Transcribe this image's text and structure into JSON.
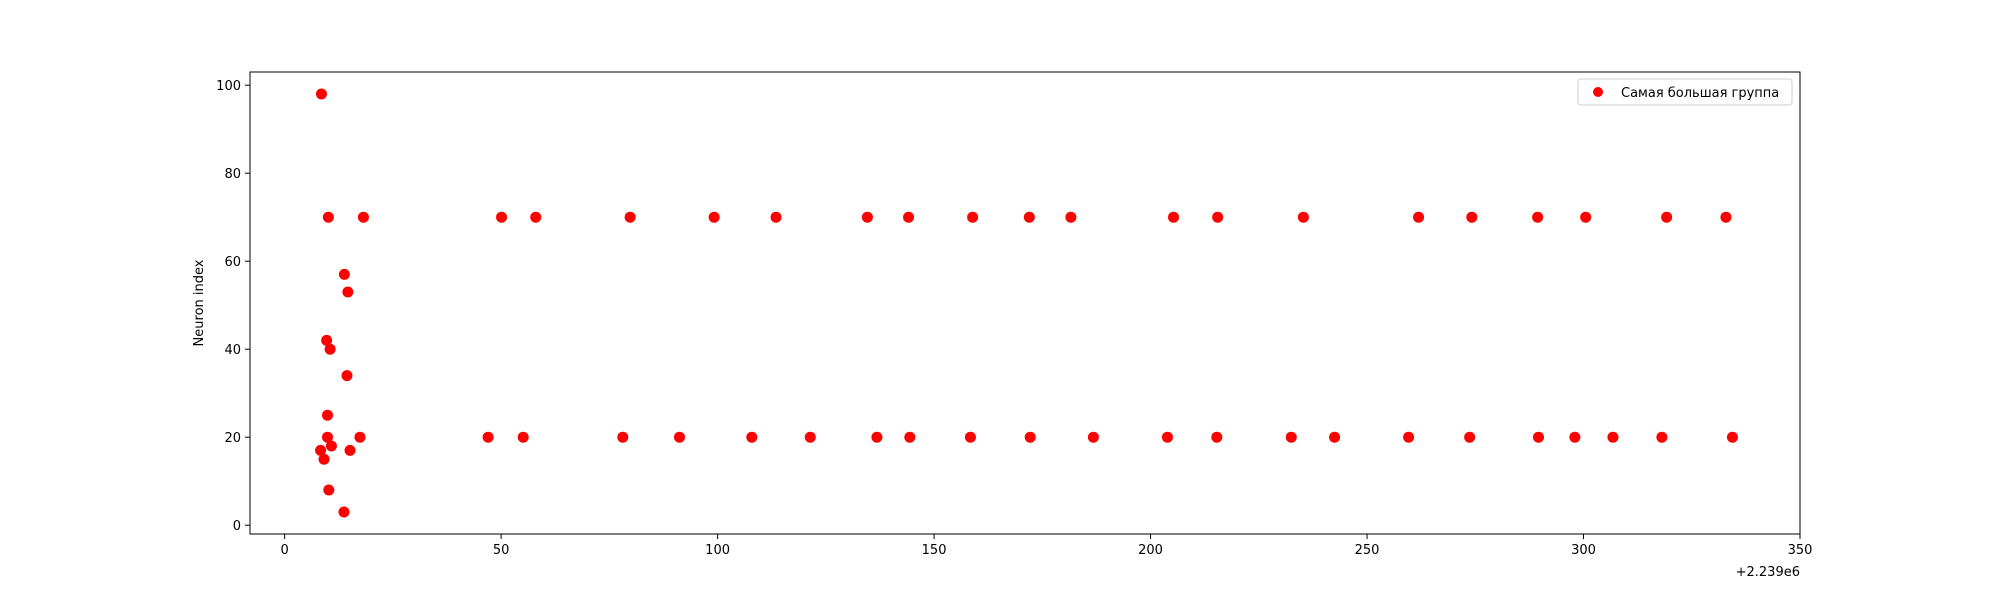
{
  "chart_data": {
    "type": "scatter",
    "title": "",
    "xlabel": "",
    "ylabel": "Neuron index",
    "x_offset_label": "+2.239e6",
    "xlim": [
      -8,
      350
    ],
    "ylim": [
      -2,
      103
    ],
    "xticks": [
      0,
      50,
      100,
      150,
      200,
      250,
      300,
      350
    ],
    "yticks": [
      0,
      20,
      40,
      60,
      80,
      100
    ],
    "grid": false,
    "legend_position": "top-right",
    "color": "#ff0000",
    "series": [
      {
        "name": "Самая большая группа",
        "points": [
          [
            8.5,
            98
          ],
          [
            8.3,
            17
          ],
          [
            9.1,
            15
          ],
          [
            9.7,
            42
          ],
          [
            9.9,
            25
          ],
          [
            9.9,
            20
          ],
          [
            10.1,
            70
          ],
          [
            10.2,
            8
          ],
          [
            10.5,
            40
          ],
          [
            10.8,
            18
          ],
          [
            13.7,
            3
          ],
          [
            13.8,
            57
          ],
          [
            14.4,
            34
          ],
          [
            14.6,
            53
          ],
          [
            15.1,
            17
          ],
          [
            17.4,
            20
          ],
          [
            18.2,
            70
          ],
          [
            47.0,
            20
          ],
          [
            50.1,
            70
          ],
          [
            55.1,
            20
          ],
          [
            58.0,
            70
          ],
          [
            78.1,
            20
          ],
          [
            79.8,
            70
          ],
          [
            91.2,
            20
          ],
          [
            99.2,
            70
          ],
          [
            107.9,
            20
          ],
          [
            113.5,
            70
          ],
          [
            121.4,
            20
          ],
          [
            134.6,
            70
          ],
          [
            136.8,
            20
          ],
          [
            144.1,
            70
          ],
          [
            144.4,
            20
          ],
          [
            158.4,
            20
          ],
          [
            158.9,
            70
          ],
          [
            172.0,
            70
          ],
          [
            172.2,
            20
          ],
          [
            181.6,
            70
          ],
          [
            186.8,
            20
          ],
          [
            203.9,
            20
          ],
          [
            205.3,
            70
          ],
          [
            215.3,
            20
          ],
          [
            215.5,
            70
          ],
          [
            232.5,
            20
          ],
          [
            235.3,
            70
          ],
          [
            242.5,
            20
          ],
          [
            259.6,
            20
          ],
          [
            261.9,
            70
          ],
          [
            273.7,
            20
          ],
          [
            274.2,
            70
          ],
          [
            289.4,
            70
          ],
          [
            289.6,
            20
          ],
          [
            298.0,
            20
          ],
          [
            300.5,
            70
          ],
          [
            306.8,
            20
          ],
          [
            318.1,
            20
          ],
          [
            319.2,
            70
          ],
          [
            332.9,
            70
          ],
          [
            334.4,
            20
          ]
        ]
      }
    ]
  }
}
